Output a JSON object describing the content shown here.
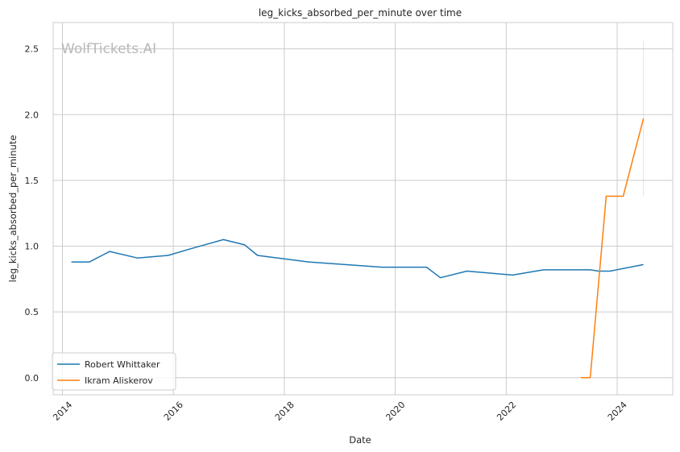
{
  "chart_data": {
    "type": "line",
    "title": "leg_kicks_absorbed_per_minute over time",
    "xlabel": "Date",
    "ylabel": "leg_kicks_absorbed_per_minute",
    "watermark": "WolfTickets.AI",
    "xlim": [
      "2013-11-01",
      "2025-01-01"
    ],
    "ylim": [
      -0.13,
      2.7
    ],
    "xticks": [
      "2014",
      "2016",
      "2018",
      "2020",
      "2022",
      "2024"
    ],
    "yticks": [
      "0.0",
      "0.5",
      "1.0",
      "1.5",
      "2.0",
      "2.5"
    ],
    "grid": true,
    "legend_position": "lower-left",
    "series": [
      {
        "name": "Robert Whittaker",
        "color": "#1f77b4",
        "points": [
          {
            "x": "2014-03-01",
            "y": 0.88
          },
          {
            "x": "2014-06-28",
            "y": 0.88
          },
          {
            "x": "2014-11-08",
            "y": 0.96
          },
          {
            "x": "2015-05-09",
            "y": 0.91
          },
          {
            "x": "2015-11-28",
            "y": 0.93
          },
          {
            "x": "2016-04-23",
            "y": 0.98
          },
          {
            "x": "2016-11-26",
            "y": 1.05
          },
          {
            "x": "2017-04-15",
            "y": 1.01
          },
          {
            "x": "2017-07-08",
            "y": 0.93
          },
          {
            "x": "2018-06-09",
            "y": 0.88
          },
          {
            "x": "2019-10-06",
            "y": 0.84
          },
          {
            "x": "2020-07-25",
            "y": 0.84
          },
          {
            "x": "2020-10-24",
            "y": 0.76
          },
          {
            "x": "2021-04-17",
            "y": 0.81
          },
          {
            "x": "2022-02-12",
            "y": 0.78
          },
          {
            "x": "2022-09-03",
            "y": 0.82
          },
          {
            "x": "2023-07-08",
            "y": 0.82
          },
          {
            "x": "2023-09-01",
            "y": 0.81
          },
          {
            "x": "2023-11-15",
            "y": 0.81
          },
          {
            "x": "2024-06-22",
            "y": 0.86
          }
        ]
      },
      {
        "name": "Ikram Aliskerov",
        "color": "#ff7f0e",
        "points": [
          {
            "x": "2023-05-06",
            "y": 0.0
          },
          {
            "x": "2023-07-08",
            "y": 0.0
          },
          {
            "x": "2023-10-21",
            "y": 1.38
          },
          {
            "x": "2024-02-10",
            "y": 1.38
          },
          {
            "x": "2024-06-22",
            "y": 1.97
          }
        ],
        "band": {
          "x": "2024-06-22",
          "low": 1.38,
          "high": 2.56
        }
      }
    ]
  }
}
